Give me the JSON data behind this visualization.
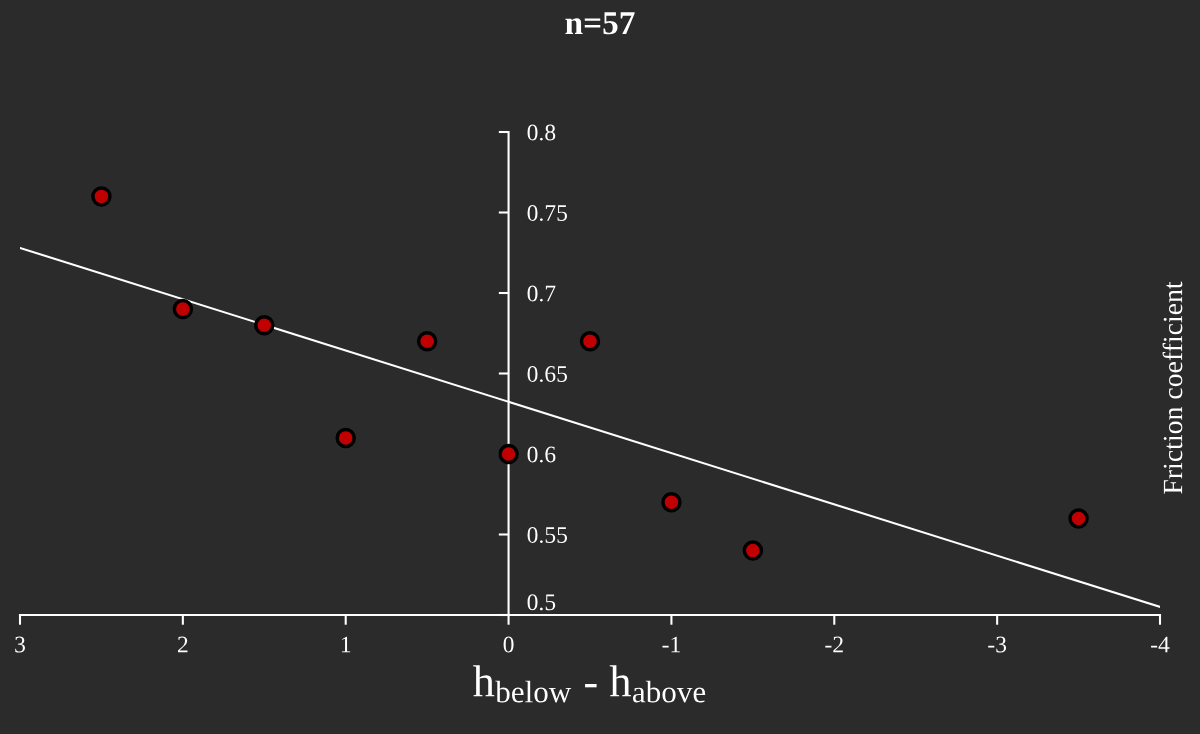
{
  "chart_data": {
    "type": "scatter",
    "title": "n=57",
    "xlabel": "h$_{below}$ - h$_{above}$",
    "ylabel": "Friction coefficient",
    "x": [
      2.5,
      2,
      1.5,
      1,
      0.5,
      0,
      -0.5,
      -1,
      -1.5,
      -3.5
    ],
    "series": [
      {
        "color": "#c00000",
        "values": [
          0.76,
          0.69,
          0.68,
          0.61,
          0.67,
          0.6,
          0.67,
          0.57,
          0.54,
          0.56
        ]
      },
      {
        "type": "line",
        "marker": "none",
        "color": "#ffffff",
        "x": [
          3,
          -4
        ],
        "values": [
          0.728,
          0.505
        ]
      }
    ],
    "xlim": [
      3,
      -4
    ],
    "xticks": [
      3,
      2,
      1,
      0,
      -1,
      -2,
      -3,
      -4
    ],
    "ylim": [
      0.5,
      0.8
    ],
    "yticks": [
      0.5,
      0.55,
      0.6,
      0.65,
      0.7,
      0.75,
      0.8
    ],
    "grid": false,
    "legend": false,
    "marker": "circle"
  }
}
